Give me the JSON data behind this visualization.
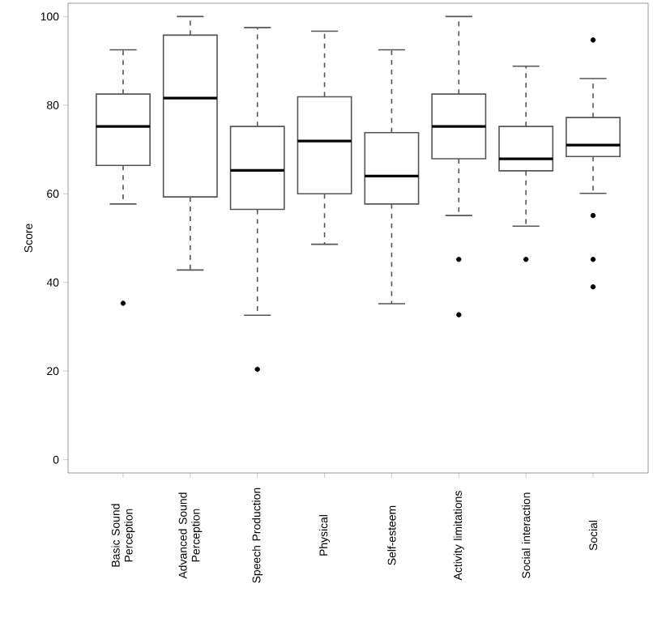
{
  "chart_data": {
    "type": "box",
    "ylabel": "Score",
    "categories": [
      "Basic Sound Perception",
      "Advanced Sound Perception",
      "Speech Production",
      "Physical",
      "Self-esteem",
      "Activity limitations",
      "Social interaction",
      "Social"
    ],
    "boxes": [
      {
        "low": 57.7,
        "q1": 66.4,
        "median": 75.2,
        "q3": 82.5,
        "high": 92.5,
        "outliers": [
          35.3
        ]
      },
      {
        "low": 42.8,
        "q1": 59.3,
        "median": 81.6,
        "q3": 95.8,
        "high": 100
      },
      {
        "low": 32.6,
        "q1": 56.5,
        "median": 65.3,
        "q3": 75.2,
        "high": 97.5,
        "outliers": [
          20.4
        ]
      },
      {
        "low": 48.6,
        "q1": 60,
        "median": 71.9,
        "q3": 81.9,
        "high": 96.7
      },
      {
        "low": 35.2,
        "q1": 57.7,
        "median": 64,
        "q3": 73.8,
        "high": 92.5
      },
      {
        "low": 55.1,
        "q1": 67.9,
        "median": 75.2,
        "q3": 82.5,
        "high": 100,
        "outliers": [
          45.2,
          32.7
        ]
      },
      {
        "low": 52.7,
        "q1": 65.2,
        "median": 67.9,
        "q3": 75.2,
        "high": 88.8,
        "outliers": [
          45.2
        ]
      },
      {
        "low": 60.1,
        "q1": 68.4,
        "median": 71,
        "q3": 77.2,
        "high": 86,
        "outliers": [
          94.7,
          55.1,
          45.2,
          39
        ]
      }
    ],
    "color": "#555555",
    "ylim": [
      -3,
      103
    ],
    "yticks": [
      0,
      20,
      40,
      60,
      80,
      100
    ],
    "line_style": "dashed"
  }
}
